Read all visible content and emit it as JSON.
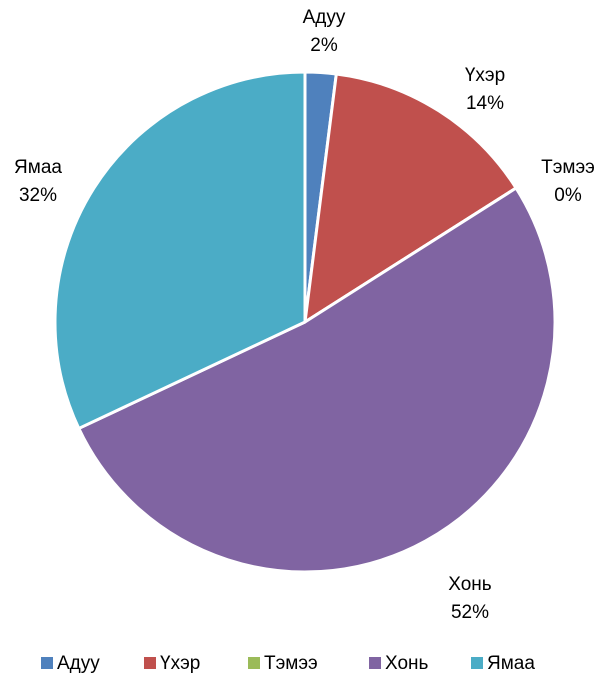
{
  "chart_data": {
    "type": "pie",
    "categories": [
      "Адуу",
      "Үхэр",
      "Тэмээ",
      "Хонь",
      "Ямаа"
    ],
    "values": [
      2,
      14,
      0,
      52,
      32
    ],
    "value_labels": [
      "2%",
      "14%",
      "0%",
      "52%",
      "32%"
    ],
    "colors": [
      "#4f81bd",
      "#c0504d",
      "#9bbb59",
      "#8064a2",
      "#4bacc6"
    ],
    "legend": "bottom"
  }
}
